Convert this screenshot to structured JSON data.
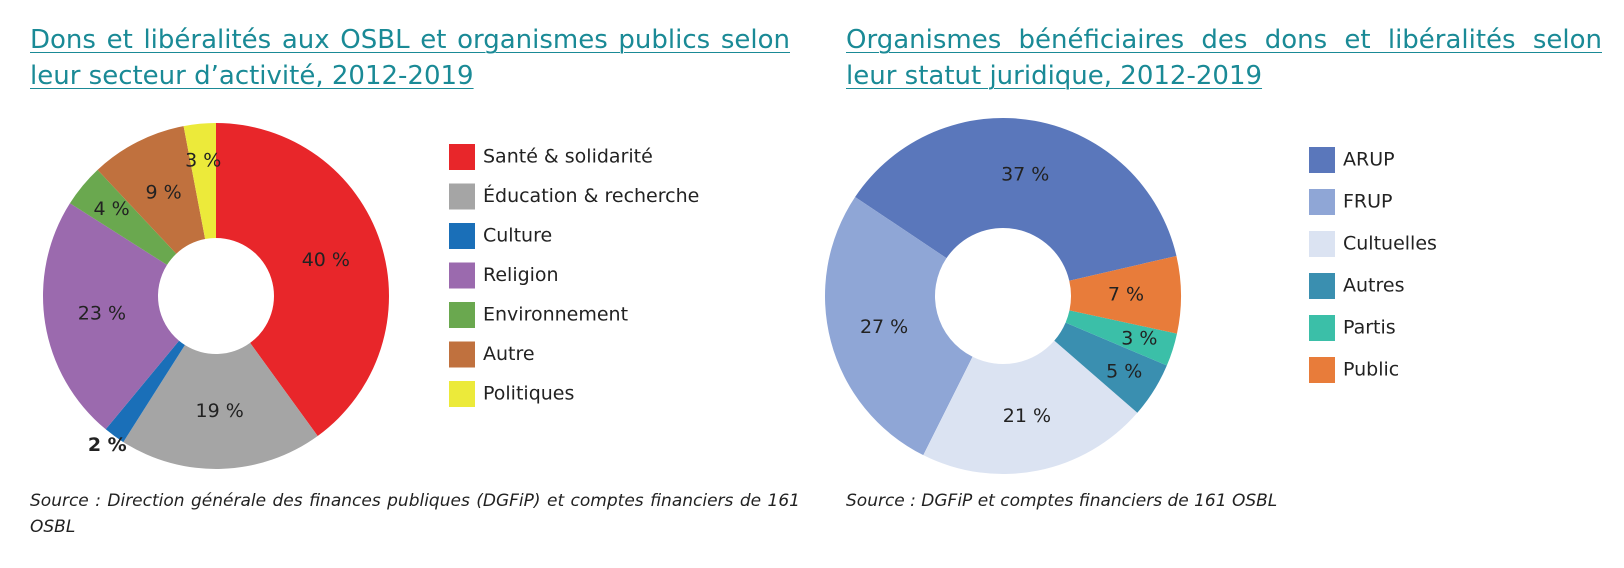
{
  "chart_data": [
    {
      "type": "pie",
      "title": "Dons et libéralités aux OSBL et organismes publics selon leur secteur d’activité, 2012-2019",
      "source": "Source : Direction générale des finances publiques (DGFiP) et comptes financiers de 161 OSBL",
      "categories": [
        "Santé & solidarité",
        "Éducation & recherche",
        "Culture",
        "Religion",
        "Environnement",
        "Autre",
        "Politiques"
      ],
      "values": [
        40,
        19,
        2,
        23,
        4,
        9,
        3
      ],
      "value_labels": [
        "40 %",
        "19 %",
        "2 %",
        "23 %",
        "4 %",
        "9 %",
        "3 %"
      ],
      "colors": [
        "#e8262a",
        "#a5a5a5",
        "#1a6fb8",
        "#9b6aae",
        "#6aa84f",
        "#c0713e",
        "#ecea3a"
      ],
      "direction": "clockwise"
    },
    {
      "type": "pie",
      "title": "Organismes bénéficiaires des dons et libéralités selon leur statut juridique, 2012-2019",
      "source": "Source : DGFiP et comptes financiers de 161 OSBL",
      "categories": [
        "ARUP",
        "FRUP",
        "Cultuelles",
        "Autres",
        "Partis",
        "Public"
      ],
      "values": [
        37,
        27,
        21,
        5,
        3,
        7
      ],
      "value_labels": [
        "37 %",
        "27 %",
        "21 %",
        "5 %",
        "3 %",
        "7 %"
      ],
      "colors": [
        "#5a77bb",
        "#8fa6d6",
        "#dbe3f2",
        "#3a8fb0",
        "#3bbfa8",
        "#e87c3a"
      ],
      "direction": "counterclockwise"
    }
  ]
}
